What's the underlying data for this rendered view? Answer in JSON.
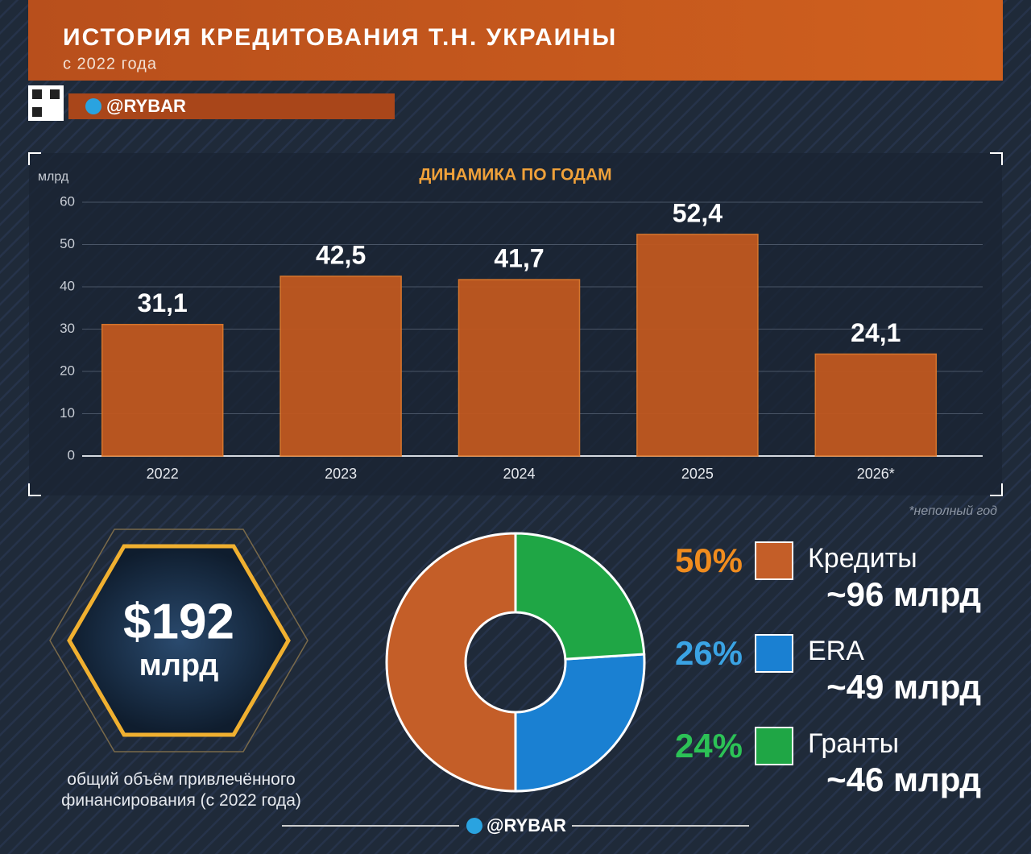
{
  "header": {
    "title": "ИСТОРИЯ КРЕДИТОВАНИЯ Т.Н. УКРАИНЫ",
    "subtitle": "с 2022 года",
    "handle": "@RYBAR"
  },
  "total": {
    "amount": "$192",
    "unit": "млрд",
    "caption": "общий объём привлечённого финансирования (с 2022 года)"
  },
  "chart_data": [
    {
      "type": "bar",
      "title": "ДИНАМИКА ПО ГОДАМ",
      "y_label": "млрд",
      "categories": [
        "2022",
        "2023",
        "2024",
        "2025",
        "2026*"
      ],
      "values": [
        31.1,
        42.5,
        41.7,
        52.4,
        24.1
      ],
      "value_labels": [
        "31,1",
        "42,5",
        "41,7",
        "52,4",
        "24,1"
      ],
      "color": "#c0581f",
      "ylim": [
        0,
        60
      ],
      "yticks": [
        0,
        10,
        20,
        30,
        40,
        50,
        60
      ],
      "grid": true,
      "note": "*неполный год"
    },
    {
      "type": "pie",
      "categories": [
        "Кредиты",
        "ERA",
        "Гранты"
      ],
      "values": [
        50,
        26,
        24
      ],
      "value_labels": [
        "50%",
        "26%",
        "24%"
      ],
      "amount_labels": [
        "~96 млрд",
        "~49 млрд",
        "~46 млрд"
      ],
      "colors": [
        "#c45e28",
        "#1a80d2",
        "#1fa645"
      ],
      "label_colors": [
        "#f08c1e",
        "#3aa3e4",
        "#2cc256"
      ]
    }
  ]
}
